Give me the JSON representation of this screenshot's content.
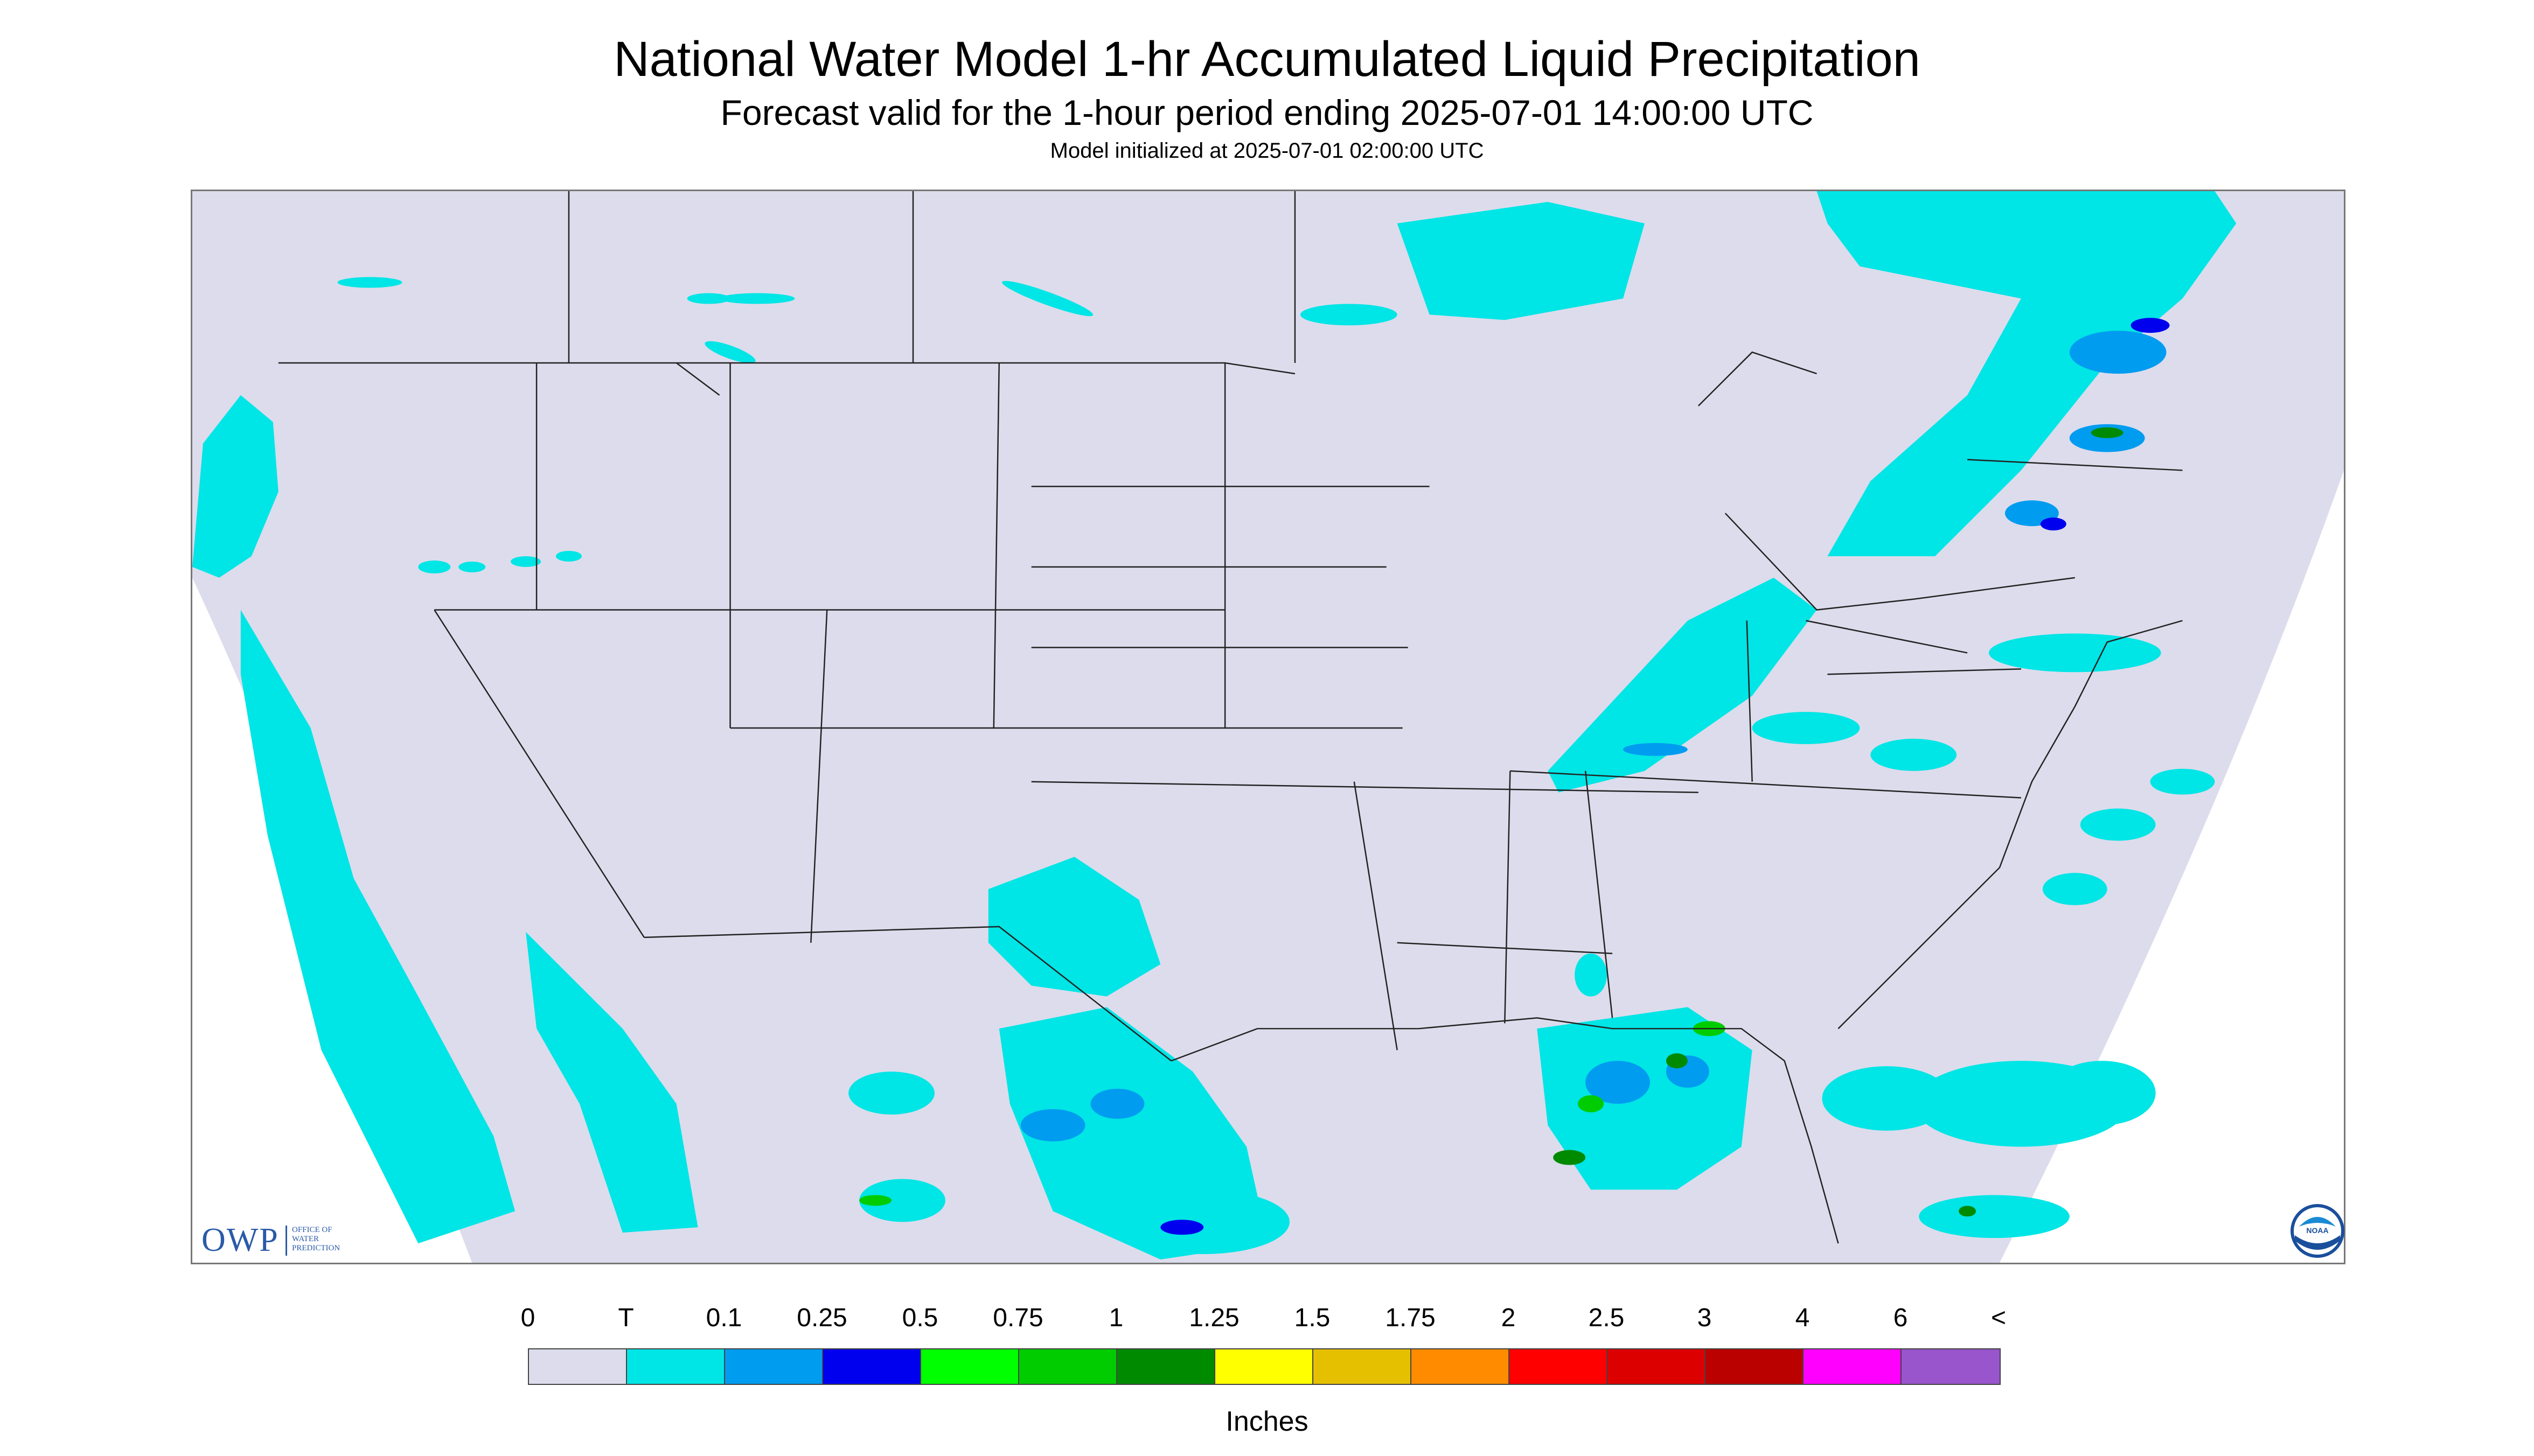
{
  "header": {
    "title": "National Water Model 1-hr Accumulated Liquid Precipitation",
    "subtitle": "Forecast valid for the 1-hour period ending 2025-07-01 14:00:00 UTC",
    "init": "Model initialized at 2025-07-01 02:00:00 UTC"
  },
  "map": {
    "background_color": "#dcdcec",
    "boundary_color": "#222222",
    "precip_colors": {
      "trace": "#00e5e5",
      "light": "#009cf0",
      "moderate": "#0000ee",
      "heavy": "#00cc00"
    }
  },
  "logos": {
    "owp_text": "OWP",
    "owp_sub": [
      "OFFICE OF",
      "WATER",
      "PREDICTION"
    ],
    "noaa_text": "NOAA"
  },
  "legend": {
    "labels": [
      "0",
      "T",
      "0.1",
      "0.25",
      "0.5",
      "0.75",
      "1",
      "1.25",
      "1.5",
      "1.75",
      "2",
      "2.5",
      "3",
      "4",
      "6",
      "<"
    ],
    "colors": [
      "#dcdcec",
      "#00e5e5",
      "#009cf0",
      "#0000ee",
      "#00ff00",
      "#00cc00",
      "#008a00",
      "#ffff00",
      "#e5c000",
      "#ff8c00",
      "#ff0000",
      "#dd0000",
      "#bb0000",
      "#ff00ff",
      "#9955cc"
    ],
    "units": "Inches"
  }
}
